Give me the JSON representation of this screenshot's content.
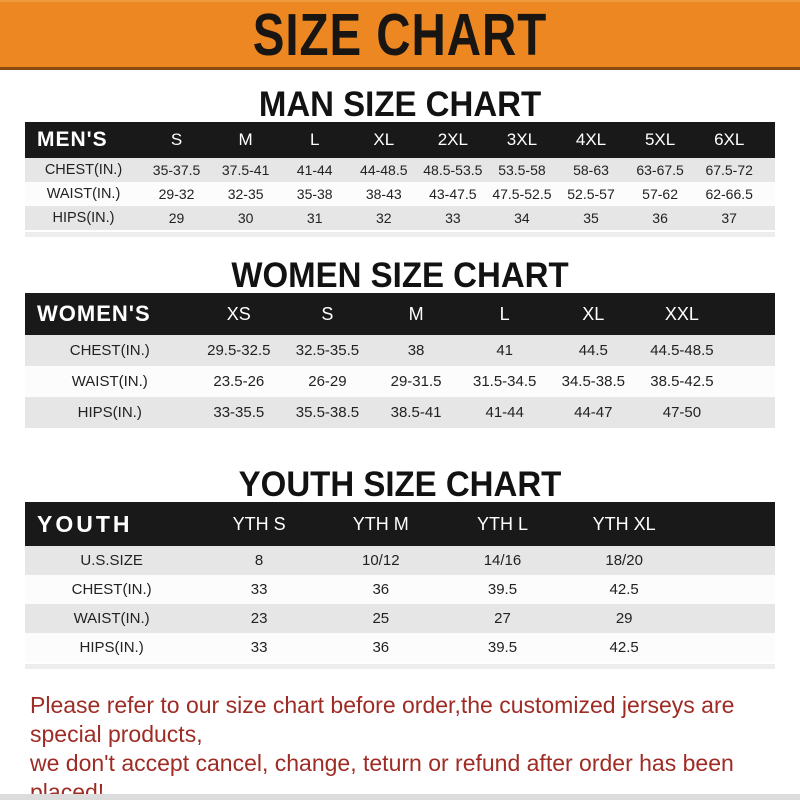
{
  "banner": {
    "title": "SIZE CHART",
    "bg_color": "#ED8721",
    "text_color": "#181512"
  },
  "sections": [
    {
      "heading": "MAN SIZE CHART",
      "table": {
        "header": [
          "MEN'S",
          "S",
          "M",
          "L",
          "XL",
          "2XL",
          "3XL",
          "4XL",
          "5XL",
          "6XL"
        ],
        "rows": [
          [
            "CHEST(IN.)",
            "35-37.5",
            "37.5-41",
            "41-44",
            "44-48.5",
            "48.5-53.5",
            "53.5-58",
            "58-63",
            "63-67.5",
            "67.5-72"
          ],
          [
            "WAIST(IN.)",
            "29-32",
            "32-35",
            "35-38",
            "38-43",
            "43-47.5",
            "47.5-52.5",
            "52.5-57",
            "57-62",
            "62-66.5"
          ],
          [
            "HIPS(IN.)",
            "29",
            "30",
            "31",
            "32",
            "33",
            "34",
            "35",
            "36",
            "37"
          ]
        ]
      }
    },
    {
      "heading": "WOMEN SIZE CHART",
      "table": {
        "header": [
          "WOMEN'S",
          "XS",
          "S",
          "M",
          "L",
          "XL",
          "XXL"
        ],
        "rows": [
          [
            "CHEST(IN.)",
            "29.5-32.5",
            "32.5-35.5",
            "38",
            "41",
            "44.5",
            "44.5-48.5"
          ],
          [
            "WAIST(IN.)",
            "23.5-26",
            "26-29",
            "29-31.5",
            "31.5-34.5",
            "34.5-38.5",
            "38.5-42.5"
          ],
          [
            "HIPS(IN.)",
            "33-35.5",
            "35.5-38.5",
            "38.5-41",
            "41-44",
            "44-47",
            "47-50"
          ]
        ]
      }
    },
    {
      "heading": "YOUTH SIZE CHART",
      "table": {
        "header": [
          "YOUTH",
          "YTH S",
          "YTH M",
          "YTH L",
          "YTH XL"
        ],
        "rows": [
          [
            "U.S.SIZE",
            "8",
            "10/12",
            "14/16",
            "18/20"
          ],
          [
            "CHEST(IN.)",
            "33",
            "36",
            "39.5",
            "42.5"
          ],
          [
            "WAIST(IN.)",
            "23",
            "25",
            "27",
            "29"
          ],
          [
            "HIPS(IN.)",
            "33",
            "36",
            "39.5",
            "42.5"
          ]
        ]
      }
    }
  ],
  "footer": {
    "line1": "Please refer to our size chart before order,the customized jerseys are special products,",
    "line2": "we don't accept cancel, change, teturn or refund after order has been placed!",
    "text_color": "#9E2B24"
  }
}
